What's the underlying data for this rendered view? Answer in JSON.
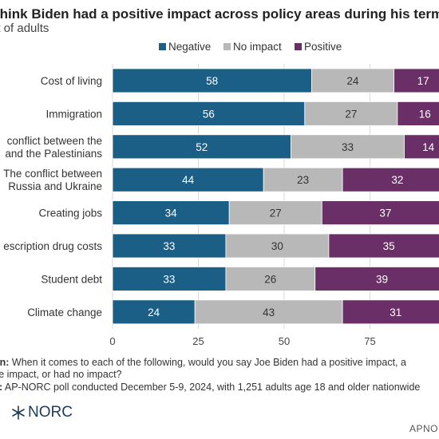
{
  "header": {
    "title": "think Biden had a positive impact across policy areas during his term.",
    "subtitle": "nt of adults"
  },
  "colors": {
    "negative": "#1b5e86",
    "no_impact": "#b8b8b8",
    "positive": "#6b2f67"
  },
  "chart_data": {
    "type": "bar",
    "orientation": "horizontal",
    "stacked": true,
    "categories": [
      "Cost of living",
      "Immigration",
      "conflict between the|and the Palestinians",
      "The conflict between|Russia and Ukraine",
      "Creating jobs",
      "escription drug costs",
      "Student debt",
      "Climate change"
    ],
    "series": [
      {
        "name": "Negative",
        "values": [
          58,
          56,
          52,
          44,
          34,
          33,
          33,
          24
        ]
      },
      {
        "name": "No impact",
        "values": [
          24,
          27,
          33,
          23,
          27,
          30,
          26,
          43
        ]
      },
      {
        "name": "Positive",
        "values": [
          17,
          16,
          14,
          32,
          37,
          35,
          39,
          31
        ]
      }
    ],
    "x_ticks": [
      0,
      25,
      50,
      75
    ],
    "xlim": [
      0,
      100
    ],
    "legend_position": "top",
    "grid": true
  },
  "footer": {
    "question_label": "on:",
    "question_line1": " When it comes to each of the following, would you say Joe Biden had a positive impact, a",
    "question_line2": "ve impact, or had no impact?",
    "source_label": "e:",
    "source_text": " AP-NORC poll conducted December 5-9, 2024, with 1,251 adults age 18 and older nationwide",
    "logo_text": "NORC",
    "credit": "APNO"
  }
}
